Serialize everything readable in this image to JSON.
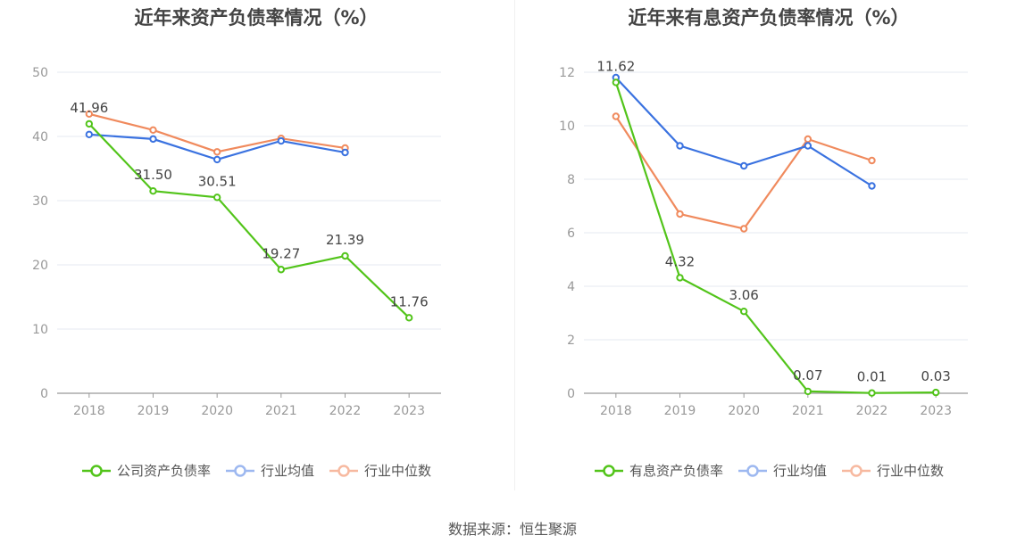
{
  "source_text": "数据来源：恒生聚源",
  "chart_data": [
    {
      "type": "line",
      "title": "近年来资产负债率情况（%）",
      "categories": [
        "2018",
        "2019",
        "2020",
        "2021",
        "2022",
        "2023"
      ],
      "ylim": [
        0,
        50
      ],
      "yticks": [
        "0",
        "10",
        "20",
        "30",
        "40",
        "50"
      ],
      "grid": true,
      "legend_position": "bottom",
      "series": [
        {
          "name": "公司资产负债率",
          "color": "#52c41a",
          "values": [
            41.96,
            31.5,
            30.51,
            19.27,
            21.39,
            11.76
          ],
          "labels": [
            "41.96",
            "31.50",
            "30.51",
            "19.27",
            "21.39",
            "11.76"
          ]
        },
        {
          "name": "行业均值",
          "color": "#3a72e0",
          "values": [
            40.3,
            39.6,
            36.4,
            39.3,
            37.5,
            null
          ]
        },
        {
          "name": "行业中位数",
          "color": "#f08a5d",
          "values": [
            43.5,
            41.0,
            37.6,
            39.7,
            38.2,
            null
          ]
        }
      ]
    },
    {
      "type": "line",
      "title": "近年来有息资产负债率情况（%）",
      "categories": [
        "2018",
        "2019",
        "2020",
        "2021",
        "2022",
        "2023"
      ],
      "ylim": [
        0,
        12
      ],
      "yticks": [
        "0",
        "2",
        "4",
        "6",
        "8",
        "10",
        "12"
      ],
      "grid": true,
      "legend_position": "bottom",
      "series": [
        {
          "name": "有息资产负债率",
          "color": "#52c41a",
          "values": [
            11.62,
            4.32,
            3.06,
            0.07,
            0.01,
            0.03
          ],
          "labels": [
            "11.62",
            "4.32",
            "3.06",
            "0.07",
            "0.01",
            "0.03"
          ]
        },
        {
          "name": "行业均值",
          "color": "#3a72e0",
          "values": [
            11.8,
            9.25,
            8.5,
            9.25,
            7.75,
            null
          ]
        },
        {
          "name": "行业中位数",
          "color": "#f08a5d",
          "values": [
            10.35,
            6.7,
            6.15,
            9.5,
            8.7,
            null
          ]
        }
      ]
    }
  ]
}
